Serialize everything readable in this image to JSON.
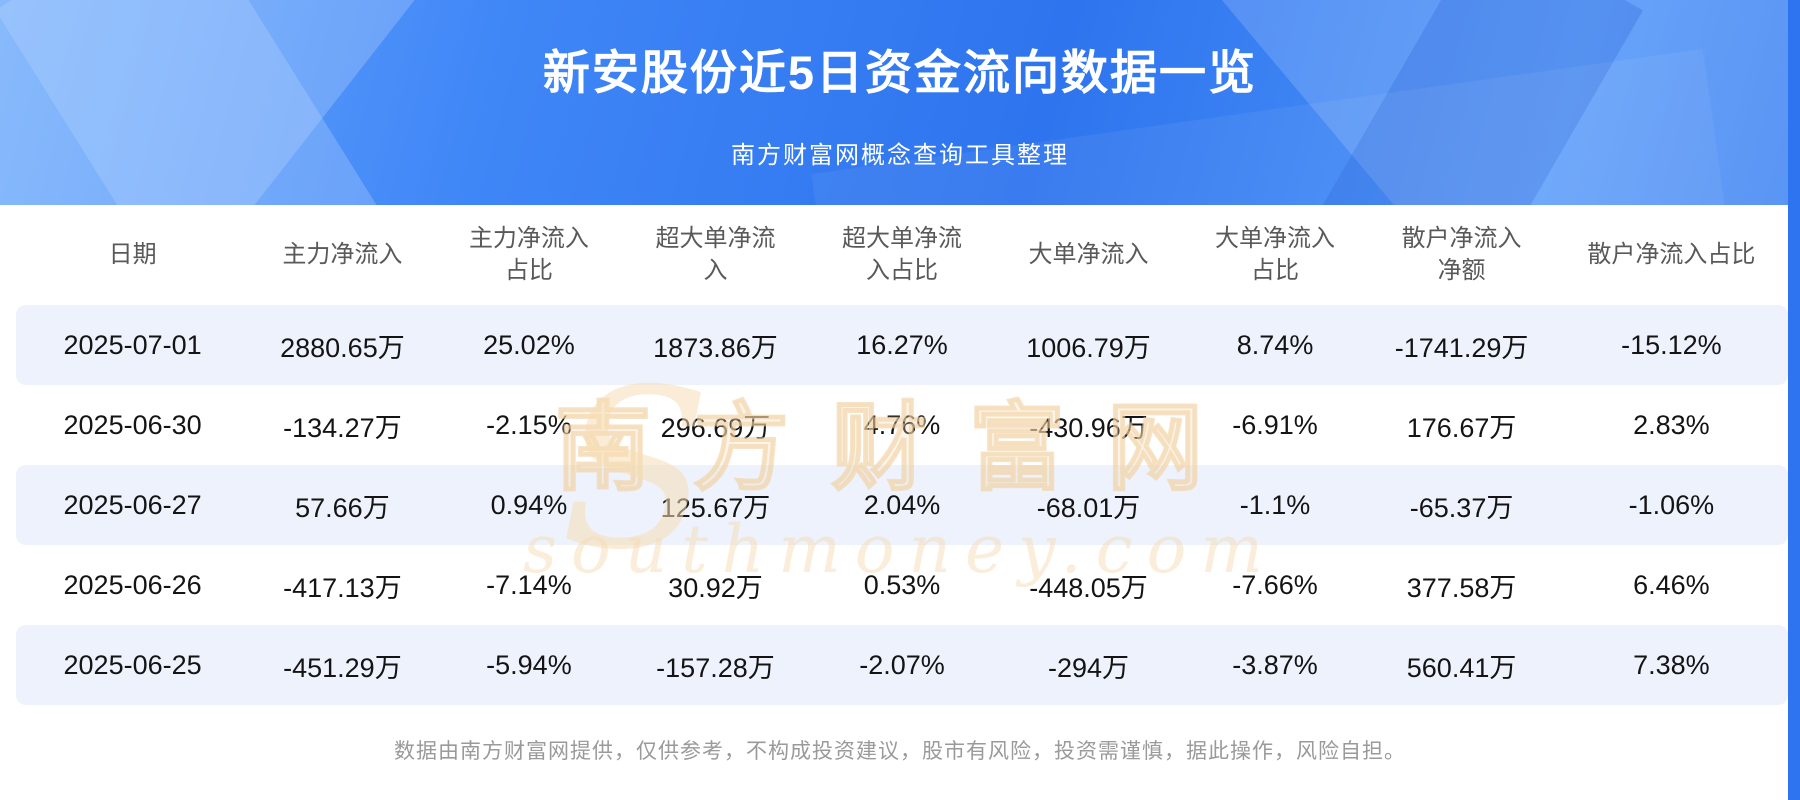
{
  "header": {
    "title": "新安股份近5日资金流向数据一览",
    "subtitle": "南方财富网概念查询工具整理"
  },
  "chart_data": {
    "type": "table",
    "title": "新安股份近5日资金流向数据一览",
    "columns": [
      "日期",
      "主力净流入",
      "主力净流入占比",
      "超大单净流入",
      "超大单净流入占比",
      "大单净流入",
      "大单净流入占比",
      "散户净流入净额",
      "散户净流入占比"
    ],
    "rows": [
      [
        "2025-07-01",
        "2880.65万",
        "25.02%",
        "1873.86万",
        "16.27%",
        "1006.79万",
        "8.74%",
        "-1741.29万",
        "-15.12%"
      ],
      [
        "2025-06-30",
        "-134.27万",
        "-2.15%",
        "296.69万",
        "4.76%",
        "-430.96万",
        "-6.91%",
        "176.67万",
        "2.83%"
      ],
      [
        "2025-06-27",
        "57.66万",
        "0.94%",
        "125.67万",
        "2.04%",
        "-68.01万",
        "-1.1%",
        "-65.37万",
        "-1.06%"
      ],
      [
        "2025-06-26",
        "-417.13万",
        "-7.14%",
        "30.92万",
        "0.53%",
        "-448.05万",
        "-7.66%",
        "377.58万",
        "6.46%"
      ],
      [
        "2025-06-25",
        "-451.29万",
        "-5.94%",
        "-157.28万",
        "-2.07%",
        "-294万",
        "-3.87%",
        "560.41万",
        "7.38%"
      ]
    ]
  },
  "watermark": {
    "big_letter": "S",
    "line1": "南方财富网",
    "line2": "southmoney.com"
  },
  "footer": {
    "disclaimer": "数据由南方财富网提供，仅供参考，不构成投资建议，股市有风险，投资需谨慎，据此操作，风险自担。"
  },
  "colors": {
    "banner_blue": "#2e74ee",
    "row_alt_blue": "#edf2fc",
    "watermark_tan": "#f6dcb4",
    "header_text_gray": "#595959",
    "footer_text_gray": "#9a9a9a"
  }
}
